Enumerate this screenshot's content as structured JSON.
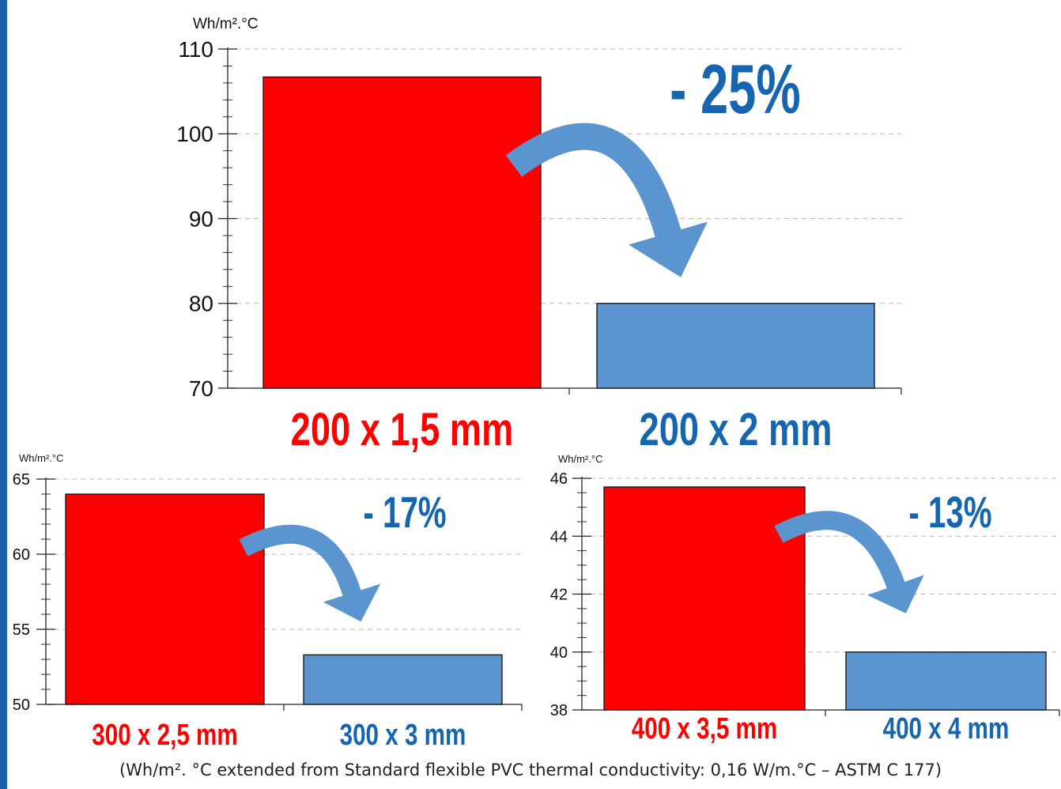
{
  "colors": {
    "red": "#ff0000",
    "blue": "#5b95d0",
    "pct_text": "#1565b0",
    "accent_rule": "#1f5fa8"
  },
  "chart_data": [
    {
      "type": "bar",
      "unit": "Wh/m².°C",
      "ylim": [
        70,
        110
      ],
      "ticks": [
        70,
        80,
        90,
        100,
        110
      ],
      "minor_step": 2,
      "grid": true,
      "categories": [
        "200 x 1,5 mm",
        "200 x 2 mm"
      ],
      "values": [
        106.7,
        80
      ],
      "annotation": "- 25%"
    },
    {
      "type": "bar",
      "unit": "Wh/m².°C",
      "ylim": [
        50,
        65
      ],
      "ticks": [
        50,
        55,
        60,
        65
      ],
      "minor_step": 1,
      "grid": true,
      "categories": [
        "300 x 2,5 mm",
        "300 x 3 mm"
      ],
      "values": [
        64,
        53.3
      ],
      "annotation": "- 17%"
    },
    {
      "type": "bar",
      "unit": "Wh/m².°C",
      "ylim": [
        38,
        46
      ],
      "ticks": [
        38,
        40,
        42,
        44,
        46
      ],
      "minor_step": 0.5,
      "grid": true,
      "categories": [
        "400 x 3,5 mm",
        "400 x 4 mm"
      ],
      "values": [
        45.7,
        40
      ],
      "annotation": "- 13%"
    }
  ],
  "footnote": "(Wh/m². °C extended from Standard flexible PVC thermal conductivity: 0,16 W/m.°C – ASTM C 177)"
}
